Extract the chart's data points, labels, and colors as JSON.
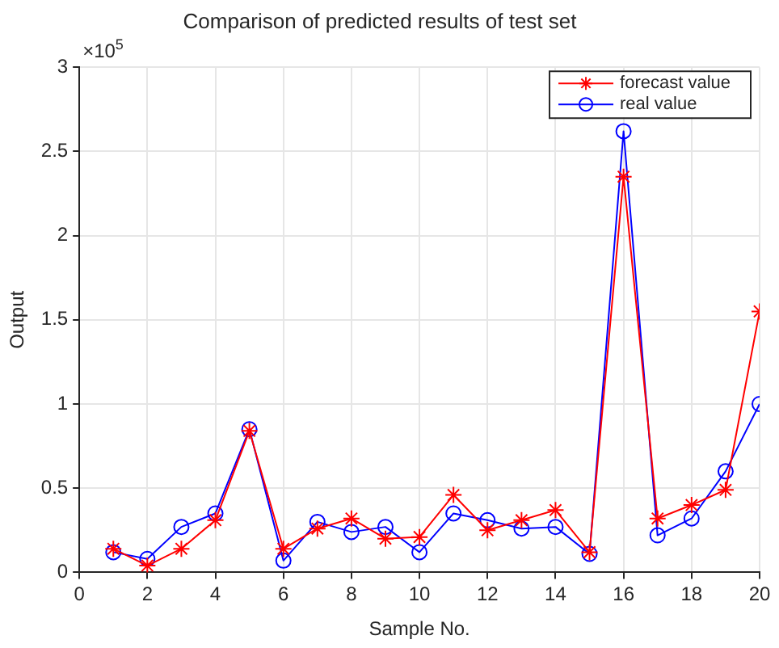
{
  "chart_data": {
    "type": "line",
    "title": "Comparison of predicted results of test set",
    "xlabel": "Sample No.",
    "ylabel": "Output",
    "annotations": [
      "×10$^{5}$"
    ],
    "x": [
      1,
      2,
      3,
      4,
      5,
      6,
      7,
      8,
      9,
      10,
      11,
      12,
      13,
      14,
      15,
      16,
      17,
      18,
      19,
      20
    ],
    "series": [
      {
        "name": "forecast value",
        "color": "#ff0000",
        "marker": "cross",
        "values": [
          0.14,
          0.04,
          0.14,
          0.31,
          0.84,
          0.14,
          0.26,
          0.32,
          0.2,
          0.21,
          0.46,
          0.25,
          0.31,
          0.37,
          0.12,
          2.35,
          0.32,
          0.4,
          0.49,
          1.55
        ]
      },
      {
        "name": "real value",
        "color": "#0000ff",
        "marker": "circle",
        "values": [
          0.12,
          0.08,
          0.27,
          0.35,
          0.85,
          0.07,
          0.3,
          0.24,
          0.27,
          0.12,
          0.35,
          0.31,
          0.26,
          0.27,
          0.11,
          2.62,
          0.22,
          0.32,
          0.6,
          1.0
        ]
      }
    ],
    "xlim": [
      0,
      20
    ],
    "xticks": [
      0,
      2,
      4,
      6,
      8,
      10,
      12,
      14,
      16,
      18,
      20
    ],
    "ylim": [
      0,
      3
    ],
    "yticks": [
      0,
      0.5,
      1,
      1.5,
      2,
      2.5,
      3
    ],
    "grid": true,
    "legend": "top right",
    "line_style": "solid"
  }
}
